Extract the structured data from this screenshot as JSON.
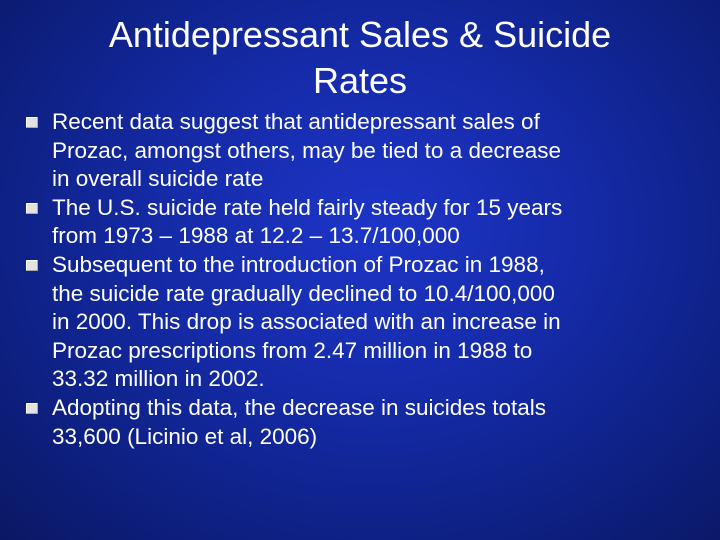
{
  "slide": {
    "title": "Antidepressant Sales & Suicide\nRates",
    "bullets": [
      {
        "text": "Recent data suggest that antidepressant sales of\nProzac, amongst others, may be tied to a decrease\nin overall suicide rate"
      },
      {
        "text": "The U.S. suicide rate held fairly steady for 15 years\nfrom 1973 – 1988 at 12.2 – 13.7/100,000"
      },
      {
        "text": "Subsequent to the introduction of Prozac in 1988,\nthe suicide rate gradually declined to 10.4/100,000\nin 2000.  This drop is associated with an increase in\nProzac prescriptions from 2.47 million in 1988 to\n33.32 million in 2002."
      },
      {
        "text": "Adopting this data, the decrease in suicides totals\n33,600 (Licinio et al, 2006)"
      }
    ]
  },
  "colors": {
    "background": "#142aa6",
    "text": "#ffffff",
    "bullet": "#e3e3e3"
  }
}
